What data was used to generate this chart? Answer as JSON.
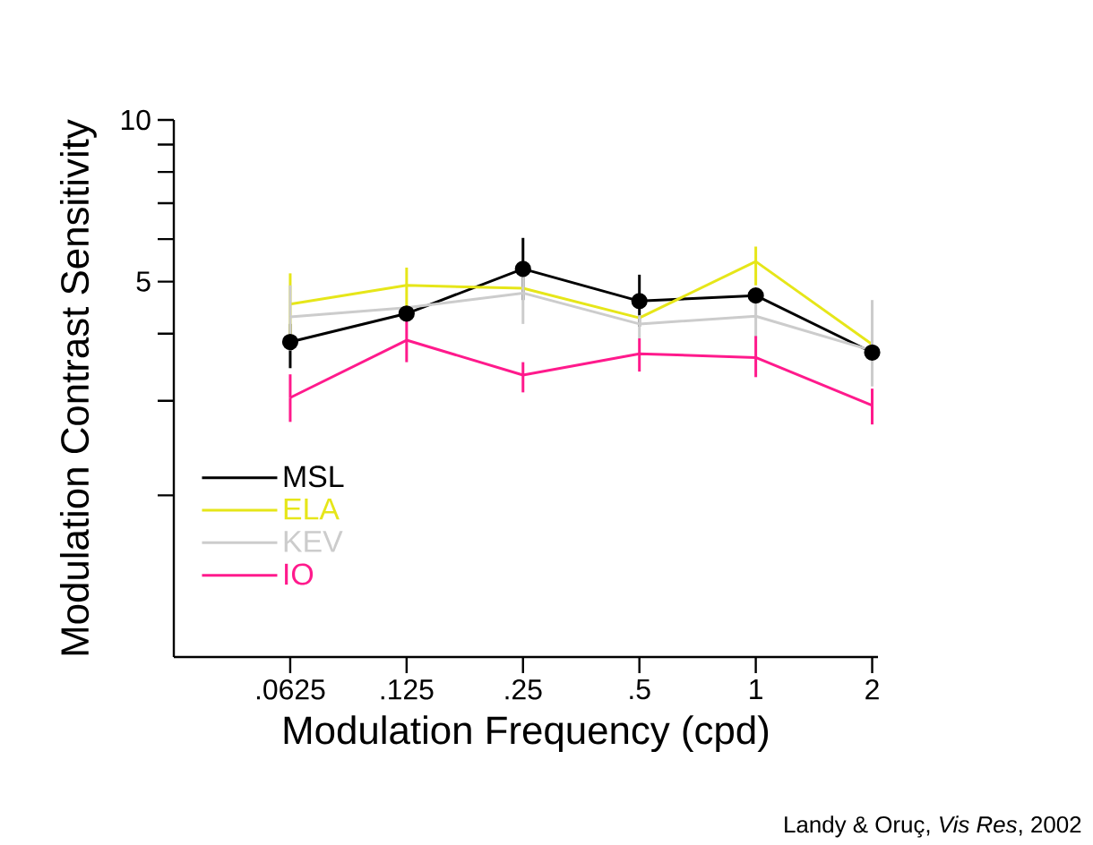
{
  "chart_data": {
    "type": "line",
    "xlabel": "Modulation Frequency (cpd)",
    "ylabel": "Modulation Contrast Sensitivity",
    "categories": [
      ".0625",
      ".125",
      ".25",
      ".5",
      "1",
      "2"
    ],
    "log": true,
    "ylim": [
      1,
      10
    ],
    "yticks": [
      {
        "value": 2,
        "label": null
      },
      {
        "value": 3,
        "label": null
      },
      {
        "value": 4,
        "label": null
      },
      5,
      {
        "value": 6,
        "label": null
      },
      {
        "value": 7,
        "label": null
      },
      {
        "value": 8,
        "label": null
      },
      {
        "value": 9,
        "label": null
      },
      10
    ],
    "legend": "bottom left",
    "series": [
      {
        "name": "MSL",
        "color": "#000000",
        "marker": "circle",
        "values": [
          3.86,
          4.36,
          5.28,
          4.6,
          4.71,
          3.69
        ],
        "errors": [
          [
            3.45,
            4.17
          ],
          null,
          [
            4.62,
            6.03
          ],
          [
            4.12,
            5.15
          ],
          null,
          null
        ]
      },
      {
        "name": "ELA",
        "color": "#e6e619",
        "values": [
          4.54,
          4.92,
          4.86,
          4.28,
          5.45,
          3.82
        ],
        "errors": [
          [
            3.92,
            5.18
          ],
          [
            4.33,
            5.31
          ],
          null,
          null,
          [
            4.92,
            5.81
          ],
          null
        ]
      },
      {
        "name": "KEV",
        "color": "#cccccc",
        "values": [
          4.3,
          4.47,
          4.76,
          4.17,
          4.31,
          3.72
        ],
        "errors": [
          [
            3.72,
            4.92
          ],
          null,
          [
            4.17,
            5.31
          ],
          [
            3.92,
            4.33
          ],
          [
            3.92,
            4.62
          ],
          [
            3.19,
            4.62
          ]
        ]
      },
      {
        "name": "IO",
        "color": "#ff1a8c",
        "values": [
          3.04,
          3.89,
          3.35,
          3.67,
          3.61,
          2.94
        ],
        "errors": [
          [
            2.74,
            3.36
          ],
          [
            3.54,
            4.33
          ],
          [
            3.11,
            3.54
          ],
          [
            3.4,
            3.92
          ],
          [
            3.32,
            3.96
          ],
          [
            2.71,
            3.16
          ]
        ]
      }
    ],
    "annotations": [
      "Landy & Oruç, *Vis Res*, 2002"
    ]
  }
}
